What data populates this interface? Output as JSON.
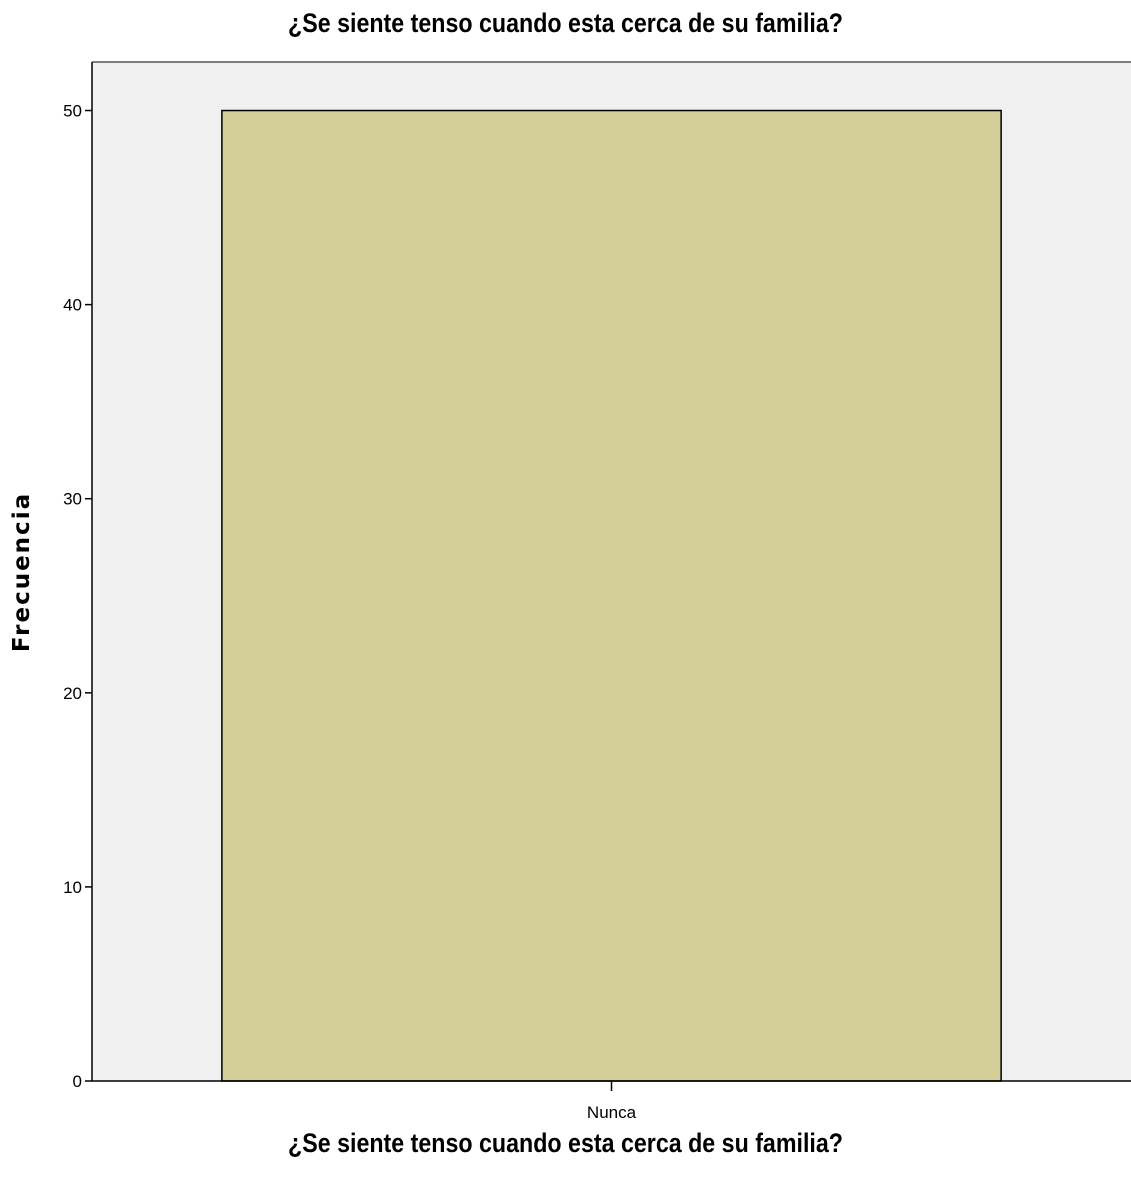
{
  "chart_data": {
    "type": "bar",
    "title": "¿Se siente tenso cuando esta cerca de su familia?",
    "xlabel": "¿Se siente tenso cuando esta cerca de su familia?",
    "ylabel": "Frecuencia",
    "categories": [
      "Nunca"
    ],
    "values": [
      50
    ],
    "ylim": [
      0,
      52.5
    ],
    "yticks": [
      0,
      10,
      20,
      30,
      40,
      50
    ],
    "grid": false,
    "colors": {
      "bar": "#d3cd98",
      "plot_background": "#f0f0f0",
      "bar_edge": "#000000"
    }
  }
}
